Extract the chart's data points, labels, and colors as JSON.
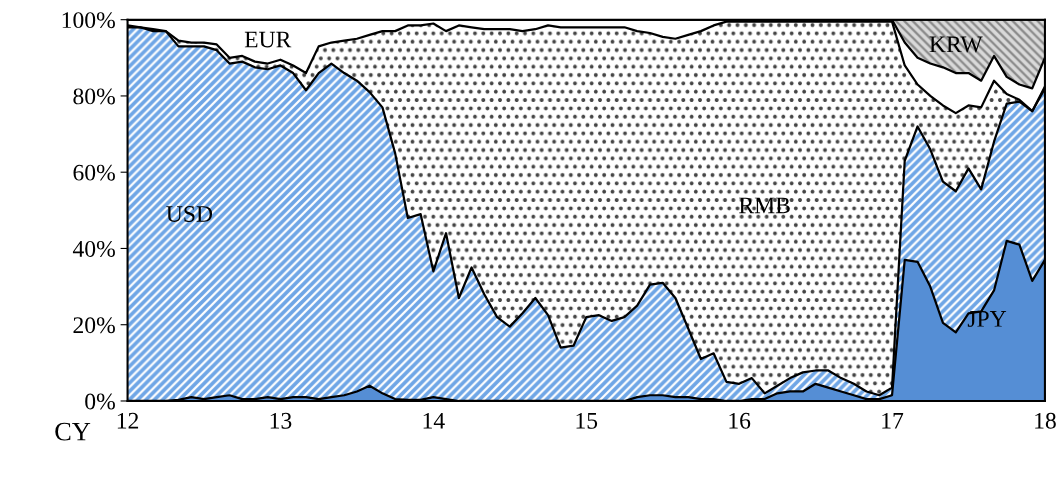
{
  "chart_data": {
    "type": "area",
    "stacked": true,
    "xlabel": "CY",
    "x": [
      12,
      12.083,
      12.167,
      12.25,
      12.333,
      12.417,
      12.5,
      12.583,
      12.667,
      12.75,
      12.833,
      12.917,
      13,
      13.083,
      13.167,
      13.25,
      13.333,
      13.417,
      13.5,
      13.583,
      13.667,
      13.75,
      13.833,
      13.917,
      14,
      14.083,
      14.167,
      14.25,
      14.333,
      14.417,
      14.5,
      14.583,
      14.667,
      14.75,
      14.833,
      14.917,
      15,
      15.083,
      15.167,
      15.25,
      15.333,
      15.417,
      15.5,
      15.583,
      15.667,
      15.75,
      15.833,
      15.917,
      16,
      16.083,
      16.167,
      16.25,
      16.333,
      16.417,
      16.5,
      16.583,
      16.667,
      16.75,
      16.833,
      16.917,
      17,
      17.083,
      17.167,
      17.25,
      17.333,
      17.417,
      17.5,
      17.583,
      17.667,
      17.75,
      17.833,
      17.917,
      18
    ],
    "series": [
      {
        "name": "JPY",
        "color": "#558ed5",
        "values": [
          0,
          0,
          0,
          0,
          0.3,
          1,
          0.5,
          1,
          1.5,
          0.5,
          0.5,
          1,
          0.5,
          1,
          1,
          0.5,
          1,
          1.5,
          2.5,
          4,
          2,
          0.5,
          0.3,
          0.3,
          1,
          0.5,
          0,
          0,
          0,
          0,
          0,
          0,
          0,
          0,
          0,
          0,
          0,
          0,
          0,
          0,
          1,
          1.5,
          1.5,
          1,
          1,
          0.5,
          0.5,
          0,
          0,
          0.5,
          0.5,
          2,
          2.5,
          2.5,
          4.5,
          3.5,
          2.5,
          1.5,
          0.5,
          0.5,
          1.5,
          37,
          36.5,
          30,
          20.5,
          18,
          23,
          23.5,
          29,
          42,
          41,
          31.5,
          37
        ]
      },
      {
        "name": "USD",
        "color": "#6fa6e6",
        "values": [
          98,
          98,
          97,
          97,
          92.7,
          92,
          92.5,
          91,
          87,
          88.5,
          87,
          86,
          87.5,
          85,
          80.5,
          85.5,
          87.5,
          84.5,
          81.5,
          77,
          75,
          64.5,
          47.7,
          48.7,
          33,
          43.5,
          27,
          35,
          28,
          22,
          19.5,
          23,
          27,
          22.5,
          14,
          14.5,
          22,
          22.5,
          21,
          22,
          24,
          29,
          29.5,
          26,
          18,
          10.5,
          12,
          5,
          4.5,
          5.5,
          1.5,
          2,
          3.5,
          5,
          3.5,
          4.5,
          3.5,
          3,
          2,
          1,
          2,
          26,
          35.5,
          36,
          37,
          37,
          38,
          32,
          39,
          36,
          37.5,
          44.5,
          45
        ]
      },
      {
        "name": "RMB",
        "color": "#ffffff",
        "values": [
          0.5,
          0,
          0.5,
          0,
          1.5,
          1,
          1,
          1.5,
          1.5,
          1.5,
          1.5,
          1.5,
          1.5,
          2,
          4.5,
          7,
          5.5,
          8.5,
          11,
          15,
          20,
          32,
          50.5,
          49.5,
          65,
          53,
          71.5,
          63,
          69.5,
          75.5,
          78,
          74,
          70.5,
          76,
          84,
          83.5,
          76,
          75.5,
          77,
          76,
          72,
          66,
          64.5,
          68,
          77,
          86,
          86,
          94.5,
          95,
          93.5,
          97.5,
          95.5,
          93.5,
          92,
          91.5,
          91.5,
          93.5,
          95,
          97,
          98,
          96,
          25,
          11,
          14,
          20,
          20.5,
          16.5,
          21.5,
          16,
          2.5,
          0.5,
          0,
          0.5
        ]
      },
      {
        "name": "EUR",
        "color": "#ffffff",
        "values": [
          1.5,
          2,
          2.5,
          3,
          5.5,
          6,
          6,
          6.5,
          10,
          9.5,
          11,
          11.5,
          10.5,
          12,
          14,
          7,
          6,
          5.5,
          5,
          4,
          3,
          3,
          1.5,
          1.5,
          1,
          3,
          1.5,
          2,
          2.5,
          2.5,
          2.5,
          3,
          2.5,
          1.5,
          2,
          2,
          2,
          2,
          2,
          2,
          3,
          3.5,
          4.5,
          5,
          4,
          3,
          1.5,
          0.5,
          0.5,
          0.5,
          0.5,
          0.5,
          0.5,
          0.5,
          0.5,
          0.5,
          0.5,
          0.5,
          0.5,
          0.5,
          0.5,
          6,
          7,
          8.5,
          10,
          10.5,
          8.5,
          7,
          6.5,
          4.5,
          4,
          6,
          7.5
        ]
      },
      {
        "name": "KRW",
        "color": "#d9d9d9",
        "values": [
          0,
          0,
          0,
          0,
          0,
          0,
          0,
          0,
          0,
          0,
          0,
          0,
          0,
          0,
          0,
          0,
          0,
          0,
          0,
          0,
          0,
          0,
          0,
          0,
          0,
          0,
          0,
          0,
          0,
          0,
          0,
          0,
          0,
          0,
          0,
          0,
          0,
          0,
          0,
          0,
          0,
          0,
          0,
          0,
          0,
          0,
          0,
          0,
          0,
          0,
          0,
          0,
          0,
          0,
          0,
          0,
          0,
          0,
          0,
          0,
          0,
          6,
          10,
          11.5,
          12.5,
          14,
          14,
          16,
          9.5,
          15,
          17,
          18,
          10
        ]
      }
    ],
    "xlim": [
      12,
      18
    ],
    "xticks": [
      12,
      13,
      14,
      15,
      16,
      17,
      18
    ],
    "ylim": [
      0,
      100
    ],
    "yticks": [
      {
        "value": 0,
        "label": "0%"
      },
      {
        "value": 20,
        "label": "20%"
      },
      {
        "value": 40,
        "label": "40%"
      },
      {
        "value": 60,
        "label": "60%"
      },
      {
        "value": 80,
        "label": "80%"
      },
      {
        "value": 100,
        "label": "100%"
      }
    ]
  }
}
